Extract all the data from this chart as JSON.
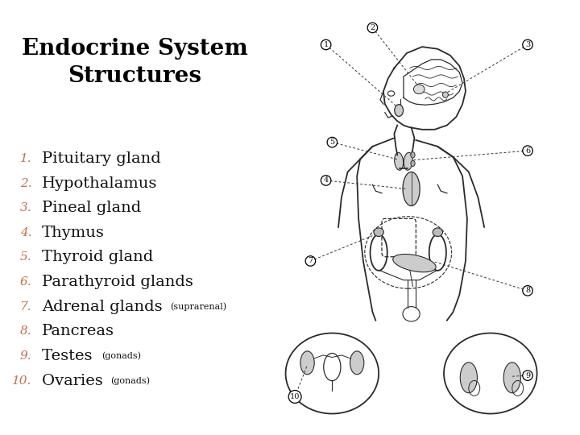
{
  "title_line1": "Endocrine System",
  "title_line2": "Structures",
  "title_fontsize": 20,
  "title_color": "#000000",
  "title_bg": "#ffffff",
  "list_bg": "#b8cdd4",
  "bottom_bar_color": "#6d9aa8",
  "number_color": "#c07050",
  "text_color": "#111111",
  "border_color": "#aaaaaa",
  "items": [
    {
      "num": "1.",
      "main": "Pituitary gland",
      "sub": ""
    },
    {
      "num": "2.",
      "main": "Hypothalamus",
      "sub": ""
    },
    {
      "num": "3.",
      "main": "Pineal gland",
      "sub": ""
    },
    {
      "num": "4.",
      "main": "Thymus",
      "sub": ""
    },
    {
      "num": "5.",
      "main": "Thyroid gland",
      "sub": ""
    },
    {
      "num": "6.",
      "main": "Parathyroid glands",
      "sub": ""
    },
    {
      "num": "7.",
      "main": "Adrenal glands ",
      "sub": "(suprarenal)"
    },
    {
      "num": "8.",
      "main": "Pancreas",
      "sub": ""
    },
    {
      "num": "9.",
      "main": "Testes ",
      "sub": "(gonads)"
    },
    {
      "num": "10.",
      "main": "Ovaries ",
      "sub": "(gonads)"
    }
  ],
  "main_fontsize": 14,
  "sub_fontsize": 8,
  "num_fontsize": 11,
  "fig_width": 7.2,
  "fig_height": 5.4,
  "dpi": 100
}
